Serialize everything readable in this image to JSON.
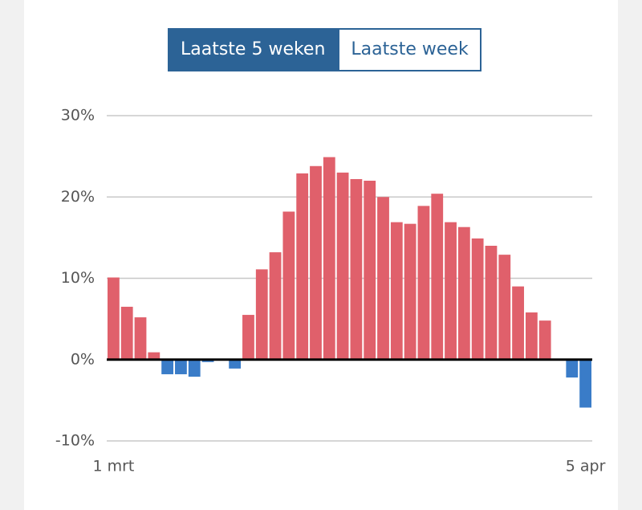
{
  "toggle": {
    "options": [
      "Laatste 5 weken",
      "Laatste week"
    ],
    "active": 0
  },
  "chart_data": {
    "type": "bar",
    "categories": [
      "1 mrt",
      null,
      null,
      null,
      null,
      null,
      null,
      null,
      null,
      null,
      null,
      null,
      null,
      null,
      null,
      null,
      null,
      null,
      null,
      null,
      null,
      null,
      null,
      null,
      null,
      null,
      null,
      null,
      null,
      null,
      null,
      null,
      null,
      null,
      null,
      "5 apr"
    ],
    "values": [
      10.1,
      6.5,
      5.2,
      0.9,
      -1.8,
      -1.8,
      -2.1,
      -0.3,
      0,
      -1.1,
      5.5,
      11.1,
      13.2,
      18.2,
      22.9,
      23.8,
      24.9,
      23,
      22.2,
      22,
      20,
      16.9,
      16.7,
      18.9,
      20.4,
      16.9,
      16.3,
      14.9,
      14,
      12.9,
      9,
      5.8,
      4.8,
      0,
      -2.2,
      -5.9
    ],
    "colors": {
      "positive": "#e0606b",
      "negative": "#3a7cc8"
    },
    "ylim": [
      -10,
      30
    ],
    "yticks": [
      {
        "value": -10,
        "label": "-10%"
      },
      {
        "value": 0,
        "label": "0%"
      },
      {
        "value": 10,
        "label": "10%"
      },
      {
        "value": 20,
        "label": "20%"
      },
      {
        "value": 30,
        "label": "30%"
      }
    ],
    "grid": true
  }
}
